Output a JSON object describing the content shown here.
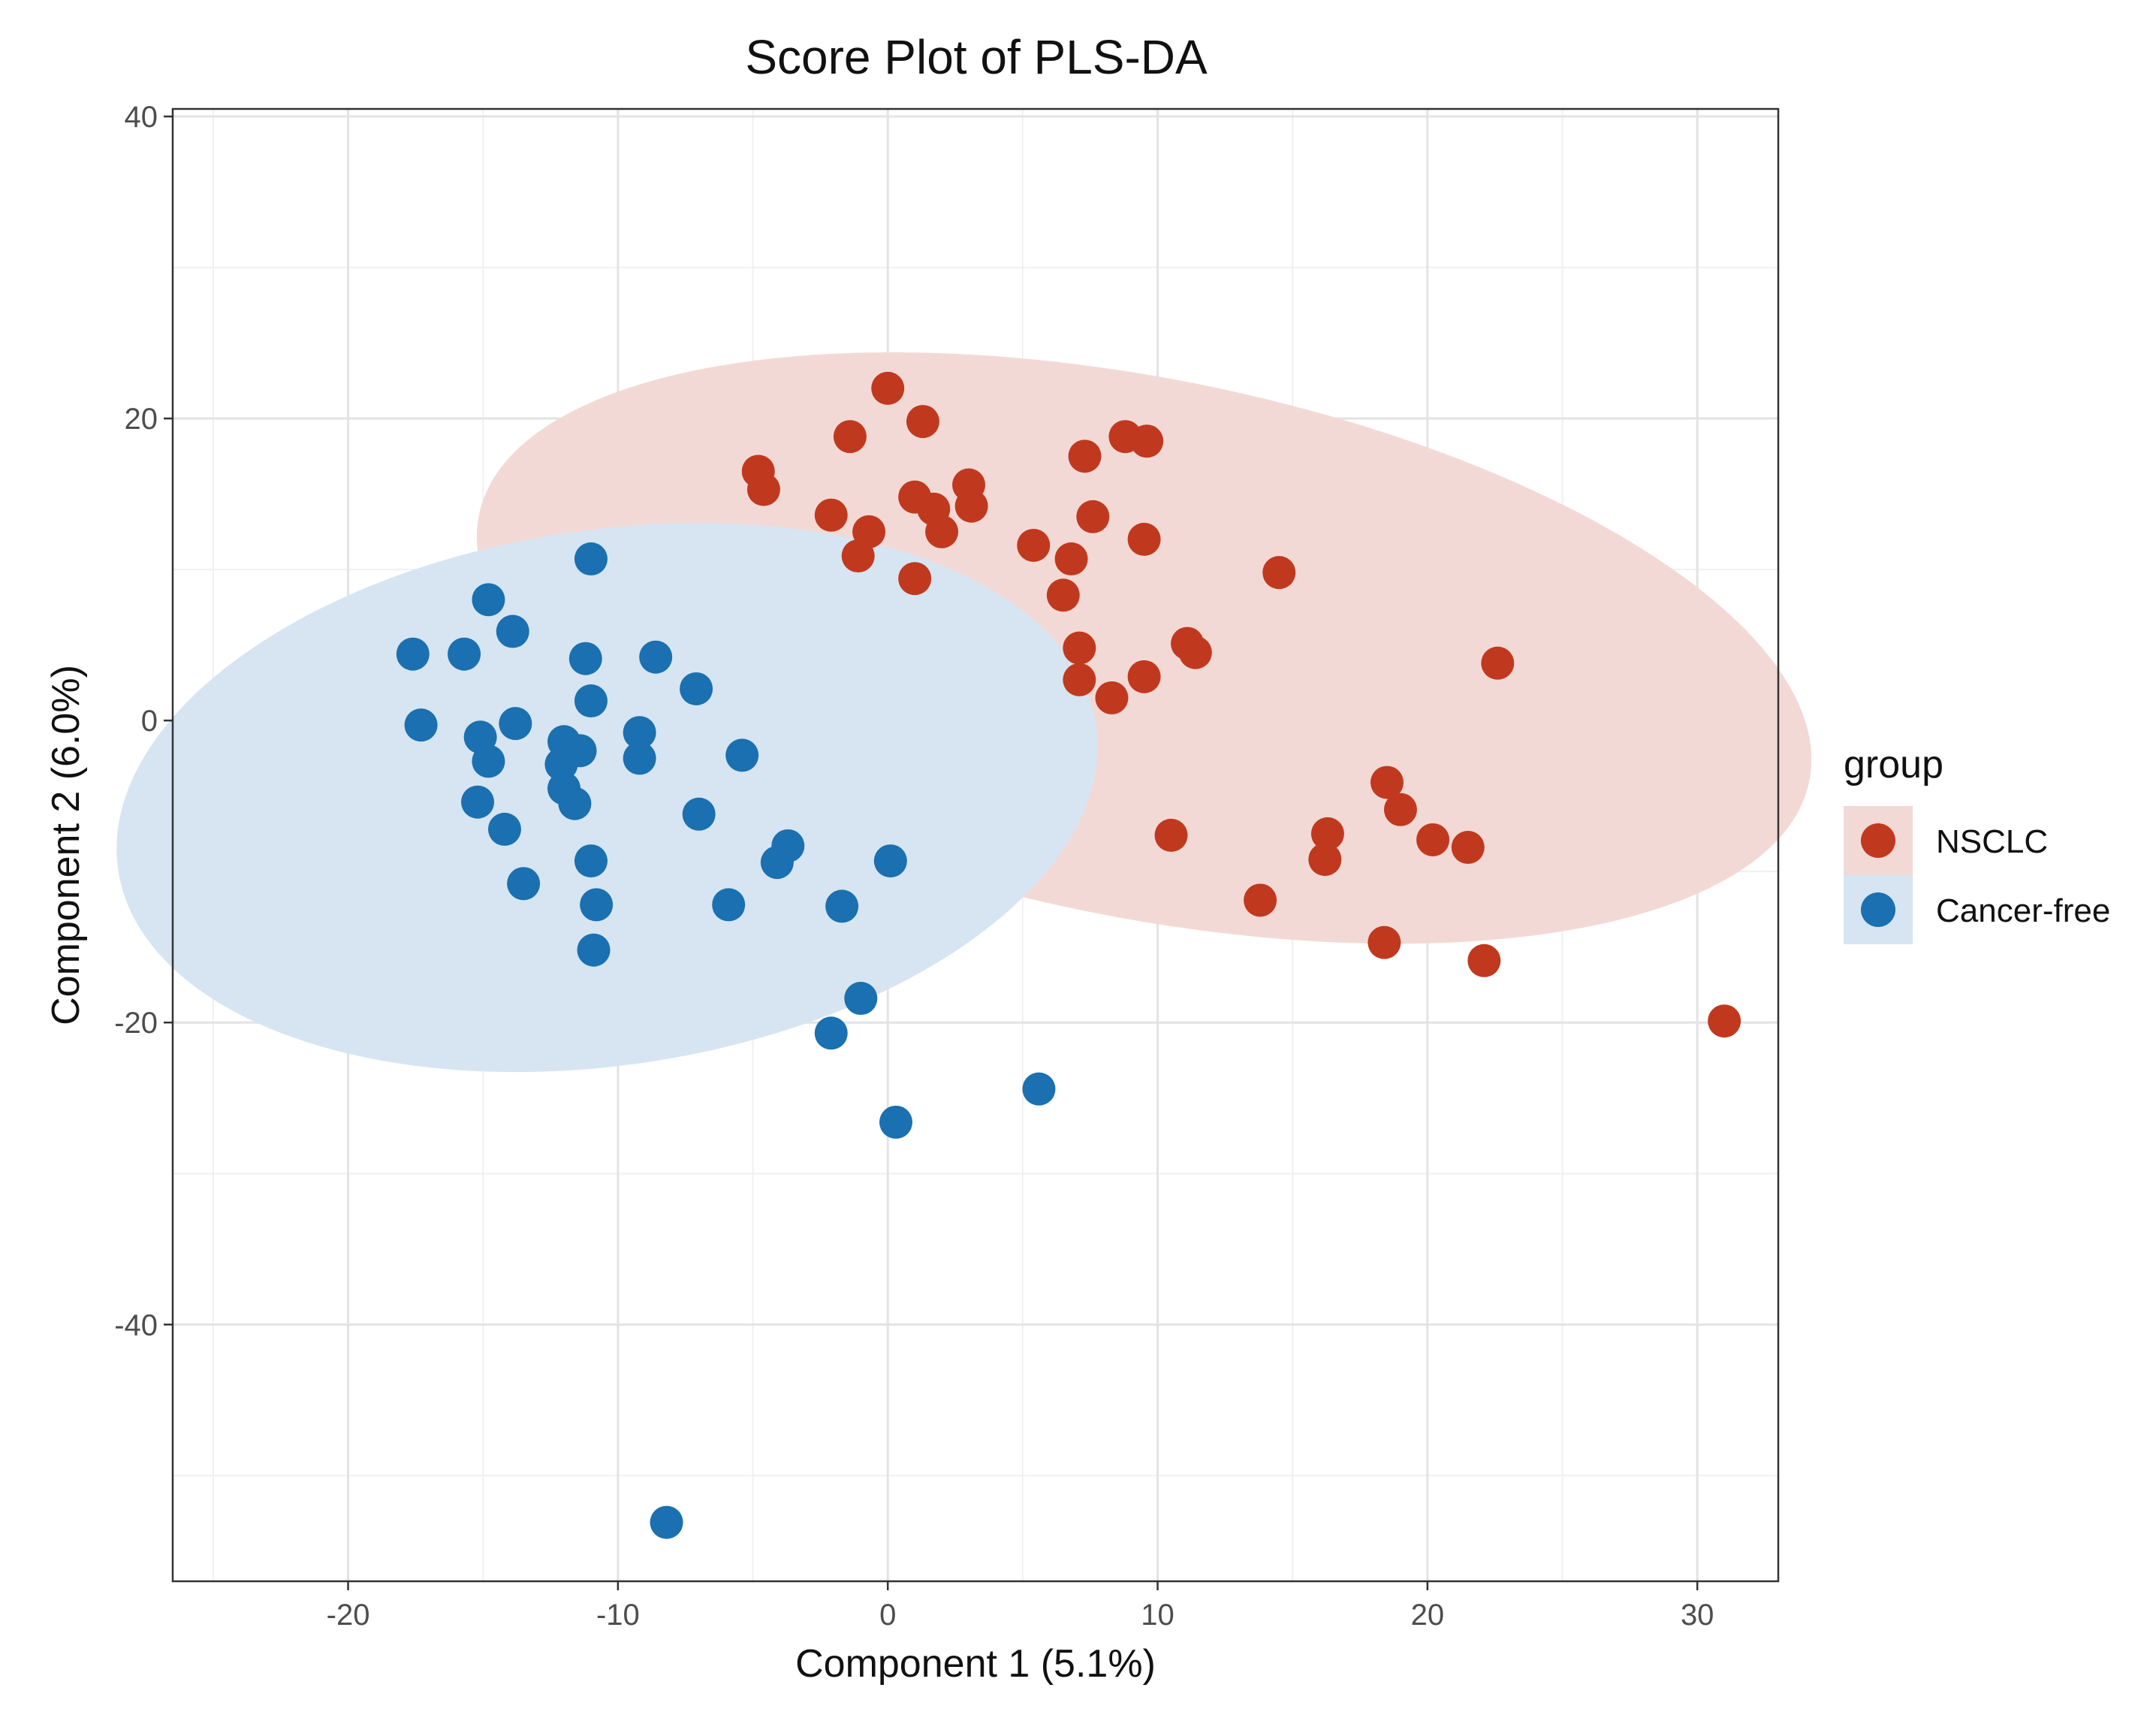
{
  "chart_data": {
    "type": "scatter",
    "title": "Score Plot of PLS-DA",
    "xlabel": "Component 1 (5.1%)",
    "ylabel": "Component 2 (6.0%)",
    "xlim": [
      -26.5,
      33
    ],
    "ylim": [
      -57,
      40.5
    ],
    "xticks": [
      -20,
      -10,
      0,
      10,
      20,
      30
    ],
    "yticks": [
      40,
      20,
      0,
      -20,
      -40
    ],
    "xtick_labels": [
      "-20",
      "-10",
      "0",
      "10",
      "20",
      "30"
    ],
    "ytick_labels": [
      "40",
      "20",
      "0",
      "-20",
      "-40"
    ],
    "grid": true,
    "legend": {
      "title": "group",
      "position": "right",
      "entries": [
        "NSCLC",
        "Cancer-free"
      ]
    },
    "series": [
      {
        "name": "NSCLC",
        "color": "#c0391f",
        "ellipse_fill": "#f3d9d5",
        "ellipse": {
          "cx": 9.5,
          "cy": 4.8,
          "rx": 26.7,
          "ry": 16.8,
          "angle_deg": -29
        },
        "points": [
          [
            0,
            22
          ],
          [
            1.3,
            19.8
          ],
          [
            -1.4,
            18.8
          ],
          [
            7.3,
            17.5
          ],
          [
            8.8,
            18.8
          ],
          [
            9.6,
            18.5
          ],
          [
            -4.8,
            16.5
          ],
          [
            -4.6,
            15.3
          ],
          [
            3,
            15.6
          ],
          [
            1,
            14.8
          ],
          [
            1.7,
            14
          ],
          [
            3.1,
            14.2
          ],
          [
            -2.1,
            13.6
          ],
          [
            -0.7,
            12.5
          ],
          [
            2,
            12.5
          ],
          [
            7.6,
            13.5
          ],
          [
            5.4,
            11.6
          ],
          [
            9.5,
            12
          ],
          [
            -1.1,
            10.9
          ],
          [
            6.8,
            10.7
          ],
          [
            1,
            9.4
          ],
          [
            14.5,
            9.8
          ],
          [
            6.5,
            8.3
          ],
          [
            11.1,
            5.1
          ],
          [
            11.4,
            4.5
          ],
          [
            7.1,
            4.8
          ],
          [
            22.6,
            3.8
          ],
          [
            7.1,
            2.7
          ],
          [
            9.5,
            2.9
          ],
          [
            8.3,
            1.5
          ],
          [
            18.5,
            -4.1
          ],
          [
            19,
            -5.9
          ],
          [
            10.5,
            -7.6
          ],
          [
            16.3,
            -7.5
          ],
          [
            20.2,
            -7.9
          ],
          [
            21.5,
            -8.4
          ],
          [
            16.2,
            -9.2
          ],
          [
            13.8,
            -11.9
          ],
          [
            18.4,
            -14.7
          ],
          [
            22.1,
            -15.9
          ],
          [
            31,
            -19.9
          ]
        ]
      },
      {
        "name": "Cancer-free",
        "color": "#1a70b0",
        "ellipse_fill": "#d6e5f1",
        "ellipse": {
          "cx": -10.4,
          "cy": -5.1,
          "rx": 16.4,
          "ry": 19.8,
          "angle_deg": -45
        },
        "points": [
          [
            -11,
            10.7
          ],
          [
            -14.8,
            8
          ],
          [
            -13.9,
            5.9
          ],
          [
            -17.6,
            4.4
          ],
          [
            -15.7,
            4.4
          ],
          [
            -11.2,
            4.1
          ],
          [
            -8.6,
            4.2
          ],
          [
            -7.1,
            2.1
          ],
          [
            -11,
            1.3
          ],
          [
            -17.3,
            -0.3
          ],
          [
            -15.1,
            -1.1
          ],
          [
            -13.8,
            -0.2
          ],
          [
            -12,
            -1.4
          ],
          [
            -11.4,
            -2
          ],
          [
            -9.2,
            -0.8
          ],
          [
            -12.1,
            -2.9
          ],
          [
            -14.8,
            -2.7
          ],
          [
            -9.2,
            -2.5
          ],
          [
            -5.4,
            -2.3
          ],
          [
            -12,
            -4.5
          ],
          [
            -11.6,
            -5.5
          ],
          [
            -15.2,
            -5.4
          ],
          [
            -7,
            -6.2
          ],
          [
            -14.2,
            -7.2
          ],
          [
            -3.7,
            -8.3
          ],
          [
            -4.1,
            -9.4
          ],
          [
            -11,
            -9.3
          ],
          [
            0.1,
            -9.3
          ],
          [
            -13.5,
            -10.8
          ],
          [
            -10.8,
            -12.2
          ],
          [
            -5.9,
            -12.2
          ],
          [
            -1.7,
            -12.3
          ],
          [
            -10.9,
            -15.2
          ],
          [
            -1,
            -18.4
          ],
          [
            -2.1,
            -20.7
          ],
          [
            5.6,
            -24.4
          ],
          [
            0.3,
            -26.6
          ],
          [
            -8.2,
            -53.1
          ]
        ]
      }
    ]
  }
}
